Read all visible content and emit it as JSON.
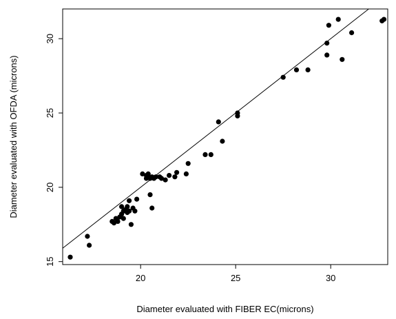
{
  "chart_data": {
    "type": "scatter",
    "title": "",
    "xlabel": "Diameter evaluated with FIBER EC(microns)",
    "ylabel": "Diameter evaluated with OFDA (microns)",
    "xlim": [
      15.9,
      33.0
    ],
    "ylim": [
      14.8,
      32.0
    ],
    "x_ticks": [
      20,
      25,
      30
    ],
    "y_ticks": [
      15,
      20,
      25,
      30
    ],
    "grid": false,
    "legend": "none",
    "reference_line": {
      "type": "identity",
      "slope": 1,
      "intercept": 0
    },
    "point_color": "#000000",
    "points": [
      {
        "x": 16.3,
        "y": 15.3
      },
      {
        "x": 17.2,
        "y": 16.7
      },
      {
        "x": 17.3,
        "y": 16.1
      },
      {
        "x": 18.5,
        "y": 17.7
      },
      {
        "x": 18.6,
        "y": 17.6
      },
      {
        "x": 18.7,
        "y": 17.9
      },
      {
        "x": 18.8,
        "y": 17.7
      },
      {
        "x": 18.9,
        "y": 18.0
      },
      {
        "x": 19.0,
        "y": 18.2
      },
      {
        "x": 19.0,
        "y": 18.7
      },
      {
        "x": 19.1,
        "y": 18.4
      },
      {
        "x": 19.1,
        "y": 17.9
      },
      {
        "x": 19.2,
        "y": 18.5
      },
      {
        "x": 19.3,
        "y": 18.7
      },
      {
        "x": 19.3,
        "y": 18.3
      },
      {
        "x": 19.4,
        "y": 19.1
      },
      {
        "x": 19.4,
        "y": 18.4
      },
      {
        "x": 19.5,
        "y": 17.5
      },
      {
        "x": 19.6,
        "y": 18.6
      },
      {
        "x": 19.7,
        "y": 18.4
      },
      {
        "x": 19.8,
        "y": 19.2
      },
      {
        "x": 20.1,
        "y": 20.9
      },
      {
        "x": 20.3,
        "y": 20.8
      },
      {
        "x": 20.3,
        "y": 20.6
      },
      {
        "x": 20.4,
        "y": 20.7
      },
      {
        "x": 20.4,
        "y": 20.9
      },
      {
        "x": 20.5,
        "y": 20.6
      },
      {
        "x": 20.5,
        "y": 19.5
      },
      {
        "x": 20.6,
        "y": 20.7
      },
      {
        "x": 20.6,
        "y": 18.6
      },
      {
        "x": 20.7,
        "y": 20.6
      },
      {
        "x": 20.8,
        "y": 20.7
      },
      {
        "x": 21.0,
        "y": 20.7
      },
      {
        "x": 21.1,
        "y": 20.6
      },
      {
        "x": 21.3,
        "y": 20.5
      },
      {
        "x": 21.5,
        "y": 20.8
      },
      {
        "x": 21.8,
        "y": 20.7
      },
      {
        "x": 21.9,
        "y": 21.0
      },
      {
        "x": 22.4,
        "y": 20.9
      },
      {
        "x": 22.5,
        "y": 21.6
      },
      {
        "x": 23.4,
        "y": 22.2
      },
      {
        "x": 23.7,
        "y": 22.2
      },
      {
        "x": 24.1,
        "y": 24.4
      },
      {
        "x": 24.3,
        "y": 23.1
      },
      {
        "x": 25.1,
        "y": 25.0
      },
      {
        "x": 25.1,
        "y": 24.8
      },
      {
        "x": 27.5,
        "y": 27.4
      },
      {
        "x": 28.2,
        "y": 27.9
      },
      {
        "x": 28.8,
        "y": 27.9
      },
      {
        "x": 29.8,
        "y": 29.7
      },
      {
        "x": 29.8,
        "y": 28.9
      },
      {
        "x": 29.9,
        "y": 30.9
      },
      {
        "x": 30.4,
        "y": 31.3
      },
      {
        "x": 30.6,
        "y": 28.6
      },
      {
        "x": 31.1,
        "y": 30.4
      },
      {
        "x": 32.7,
        "y": 31.2
      },
      {
        "x": 32.8,
        "y": 31.3
      }
    ]
  }
}
